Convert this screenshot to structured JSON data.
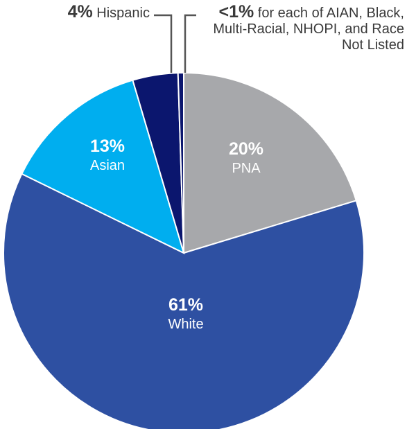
{
  "chart_data": {
    "type": "pie",
    "categories": [
      "PNA",
      "White",
      "Asian",
      "Hispanic",
      "for each of AIAN, Black, Multi-Racial, NHOPI, and Race Not Listed"
    ],
    "values": [
      20,
      61,
      13,
      4,
      0.5
    ],
    "value_labels": [
      "20%",
      "61%",
      "13%",
      "4%",
      "<1%"
    ],
    "colors": [
      "#a7a8ab",
      "#2e50a2",
      "#00aeef",
      "#0b166e",
      "#0b166e"
    ]
  }
}
